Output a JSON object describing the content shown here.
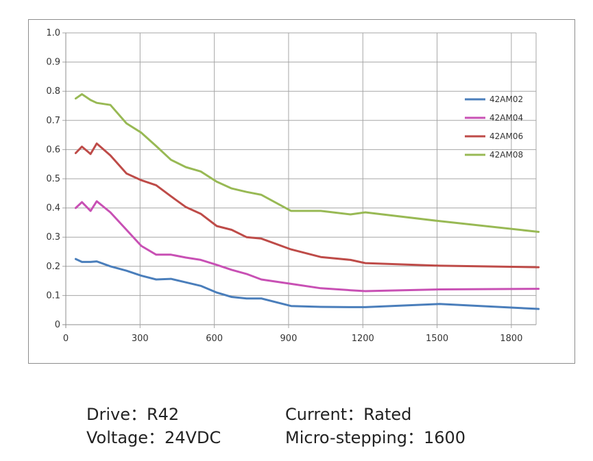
{
  "chart_data": {
    "type": "line",
    "title": "",
    "xlabel": "",
    "ylabel": "",
    "xlim": [
      0,
      1900
    ],
    "ylim": [
      0,
      1.0
    ],
    "xticks": [
      0,
      300,
      600,
      900,
      1200,
      1500,
      1800
    ],
    "xtick_labels": [
      "0",
      "300",
      "600",
      "900",
      "1200",
      "1500",
      "1800"
    ],
    "yticks": [
      0,
      0.1,
      0.2,
      0.3,
      0.4,
      0.5,
      0.6,
      0.7,
      0.8,
      0.9,
      1.0
    ],
    "ytick_labels": [
      "0",
      "0.1",
      "0.2",
      "0.3",
      "0.4",
      "0.5",
      "0.6",
      "0.7",
      "0.8",
      "0.9",
      "1.0"
    ],
    "grid": "vertical and horizontal",
    "legend_position": "right",
    "series": [
      {
        "name": "42AM02",
        "color": "#4a7ebb",
        "x": [
          40,
          65,
          100,
          125,
          180,
          245,
          305,
          365,
          425,
          485,
          545,
          610,
          670,
          730,
          790,
          910,
          1030,
          1150,
          1210,
          1510,
          1910
        ],
        "y": [
          0.225,
          0.215,
          0.215,
          0.217,
          0.2,
          0.185,
          0.168,
          0.155,
          0.157,
          0.145,
          0.133,
          0.11,
          0.095,
          0.09,
          0.09,
          0.064,
          0.061,
          0.06,
          0.06,
          0.071,
          0.054
        ]
      },
      {
        "name": "42AM04",
        "color": "#c850b4",
        "x": [
          40,
          65,
          100,
          125,
          180,
          245,
          305,
          365,
          425,
          485,
          545,
          610,
          670,
          730,
          790,
          910,
          1030,
          1150,
          1210,
          1510,
          1910
        ],
        "y": [
          0.4,
          0.42,
          0.39,
          0.423,
          0.385,
          0.325,
          0.27,
          0.24,
          0.24,
          0.23,
          0.222,
          0.205,
          0.188,
          0.174,
          0.155,
          0.14,
          0.125,
          0.118,
          0.115,
          0.121,
          0.123
        ]
      },
      {
        "name": "42AM06",
        "color": "#be4b48",
        "x": [
          40,
          65,
          100,
          125,
          180,
          245,
          305,
          365,
          425,
          485,
          545,
          610,
          670,
          730,
          790,
          910,
          1030,
          1150,
          1210,
          1510,
          1910
        ],
        "y": [
          0.588,
          0.61,
          0.585,
          0.621,
          0.58,
          0.518,
          0.495,
          0.478,
          0.44,
          0.403,
          0.38,
          0.338,
          0.325,
          0.3,
          0.295,
          0.258,
          0.232,
          0.222,
          0.211,
          0.202,
          0.197
        ]
      },
      {
        "name": "42AM08",
        "color": "#98b954",
        "x": [
          40,
          65,
          100,
          125,
          180,
          245,
          305,
          365,
          425,
          485,
          545,
          610,
          670,
          730,
          790,
          910,
          1030,
          1150,
          1210,
          1510,
          1910
        ],
        "y": [
          0.775,
          0.79,
          0.77,
          0.76,
          0.753,
          0.69,
          0.658,
          0.612,
          0.565,
          0.54,
          0.525,
          0.49,
          0.467,
          0.455,
          0.445,
          0.39,
          0.39,
          0.378,
          0.385,
          0.355,
          0.318
        ]
      }
    ]
  },
  "captions": {
    "drive": "Drive：R42",
    "voltage": "Voltage：24VDC",
    "current": "Current：Rated",
    "microstepping": "Micro-stepping：1600"
  },
  "colors": {
    "grid": "#a6a6a6",
    "axis": "#8c8c8c"
  }
}
